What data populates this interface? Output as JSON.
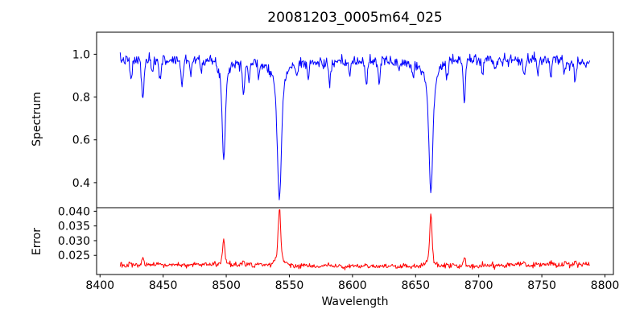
{
  "title": "20081203_0005m64_025",
  "colors": {
    "spectrum_line": "#0000ff",
    "error_line": "#ff0000",
    "axis": "#000000",
    "background": "#ffffff"
  },
  "chart_data": [
    {
      "type": "line",
      "series_name": "spectrum",
      "title": "20081203_0005m64_025",
      "ylabel": "Spectrum",
      "color": "#0000ff",
      "legend": "none",
      "grid": false,
      "xlim": [
        8397.3,
        8806.7
      ],
      "ylim": [
        0.283,
        1.103
      ],
      "xticks": [
        8400,
        8450,
        8500,
        8550,
        8600,
        8650,
        8700,
        8750,
        8800
      ],
      "xticklabels": [
        "8400",
        "8450",
        "8500",
        "8550",
        "8600",
        "8650",
        "8700",
        "8750",
        "8800"
      ],
      "yticks": [
        0.4,
        0.6,
        0.8,
        1.0
      ],
      "yticklabels": [
        "0.4",
        "0.6",
        "0.8",
        "1.0"
      ],
      "x_start": 8416,
      "x_end": 8788,
      "x_step": 0.5,
      "continuum_level": 0.97,
      "noise_sigma": 0.013,
      "noise_seed": 7,
      "deep_absorption_lines": [
        {
          "center": 8498.0,
          "depth": 0.475,
          "core_width": 1.1,
          "wing_width": 2.2,
          "min_flux": 0.51
        },
        {
          "center": 8542.1,
          "depth": 0.66,
          "core_width": 1.4,
          "wing_width": 3.2,
          "min_flux": 0.33
        },
        {
          "center": 8662.1,
          "depth": 0.64,
          "core_width": 1.3,
          "wing_width": 3.0,
          "min_flux": 0.35
        }
      ],
      "absorption_lines": [
        {
          "center": 8424.6,
          "depth": 0.1,
          "width": 0.8
        },
        {
          "center": 8433.9,
          "depth": 0.19,
          "width": 0.9
        },
        {
          "center": 8441.5,
          "depth": 0.07,
          "width": 0.7
        },
        {
          "center": 8447.5,
          "depth": 0.08,
          "width": 0.8
        },
        {
          "center": 8465.0,
          "depth": 0.12,
          "width": 0.9
        },
        {
          "center": 8472.0,
          "depth": 0.07,
          "width": 0.7
        },
        {
          "center": 8480.0,
          "depth": 0.05,
          "width": 0.7
        },
        {
          "center": 8513.8,
          "depth": 0.14,
          "width": 0.9
        },
        {
          "center": 8518.0,
          "depth": 0.09,
          "width": 0.7
        },
        {
          "center": 8525.5,
          "depth": 0.07,
          "width": 0.7
        },
        {
          "center": 8556.0,
          "depth": 0.07,
          "width": 0.7
        },
        {
          "center": 8565.0,
          "depth": 0.07,
          "width": 0.7
        },
        {
          "center": 8582.0,
          "depth": 0.1,
          "width": 0.8
        },
        {
          "center": 8598.0,
          "depth": 0.06,
          "width": 0.7
        },
        {
          "center": 8611.0,
          "depth": 0.11,
          "width": 0.8
        },
        {
          "center": 8621.0,
          "depth": 0.1,
          "width": 0.8
        },
        {
          "center": 8637.0,
          "depth": 0.05,
          "width": 0.6
        },
        {
          "center": 8648.0,
          "depth": 0.06,
          "width": 0.7
        },
        {
          "center": 8675.0,
          "depth": 0.08,
          "width": 0.8
        },
        {
          "center": 8688.6,
          "depth": 0.2,
          "width": 0.9
        },
        {
          "center": 8703.0,
          "depth": 0.07,
          "width": 0.7
        },
        {
          "center": 8713.0,
          "depth": 0.05,
          "width": 0.6
        },
        {
          "center": 8736.0,
          "depth": 0.08,
          "width": 0.8
        },
        {
          "center": 8747.0,
          "depth": 0.06,
          "width": 0.7
        },
        {
          "center": 8757.0,
          "depth": 0.09,
          "width": 0.8
        },
        {
          "center": 8768.0,
          "depth": 0.06,
          "width": 0.7
        },
        {
          "center": 8776.5,
          "depth": 0.1,
          "width": 0.8
        }
      ]
    },
    {
      "type": "line",
      "series_name": "error",
      "ylabel": "Error",
      "xlabel": "Wavelength",
      "color": "#ff0000",
      "legend": "none",
      "grid": false,
      "xlim": [
        8397.3,
        8806.7
      ],
      "ylim": [
        0.0185,
        0.0412
      ],
      "yticks": [
        0.025,
        0.03,
        0.035,
        0.04
      ],
      "yticklabels": [
        "0.025",
        "0.030",
        "0.035",
        "0.040"
      ],
      "x_start": 8416,
      "x_end": 8788,
      "x_step": 0.5,
      "baseline": 0.0215,
      "noise_sigma": 0.00045,
      "noise_seed": 13,
      "peaks": [
        {
          "center": 8424.6,
          "amplitude": 0.0012,
          "width": 0.8
        },
        {
          "center": 8433.9,
          "amplitude": 0.0024,
          "width": 0.9
        },
        {
          "center": 8498.0,
          "amplitude": 0.008,
          "width": 0.8
        },
        {
          "center": 8498.0,
          "amplitude": 0.0013,
          "width": 2.5
        },
        {
          "center": 8513.8,
          "amplitude": 0.0014,
          "width": 0.9
        },
        {
          "center": 8518.0,
          "amplitude": 0.0007,
          "width": 0.7
        },
        {
          "center": 8542.1,
          "amplitude": 0.0165,
          "width": 1.0
        },
        {
          "center": 8542.1,
          "amplitude": 0.0025,
          "width": 3.5
        },
        {
          "center": 8581.0,
          "amplitude": 0.0007,
          "width": 0.8
        },
        {
          "center": 8611.0,
          "amplitude": 0.0008,
          "width": 0.8
        },
        {
          "center": 8662.1,
          "amplitude": 0.0155,
          "width": 0.9
        },
        {
          "center": 8662.1,
          "amplitude": 0.0022,
          "width": 3.0
        },
        {
          "center": 8675.0,
          "amplitude": 0.0009,
          "width": 0.8
        },
        {
          "center": 8688.6,
          "amplitude": 0.0028,
          "width": 0.8
        },
        {
          "center": 8703.0,
          "amplitude": 0.0006,
          "width": 0.7
        },
        {
          "center": 8736.0,
          "amplitude": 0.0007,
          "width": 0.8
        },
        {
          "center": 8757.0,
          "amplitude": 0.0009,
          "width": 0.8
        },
        {
          "center": 8769.0,
          "amplitude": 0.001,
          "width": 0.9
        },
        {
          "center": 8776.5,
          "amplitude": 0.0012,
          "width": 0.8
        }
      ]
    }
  ]
}
